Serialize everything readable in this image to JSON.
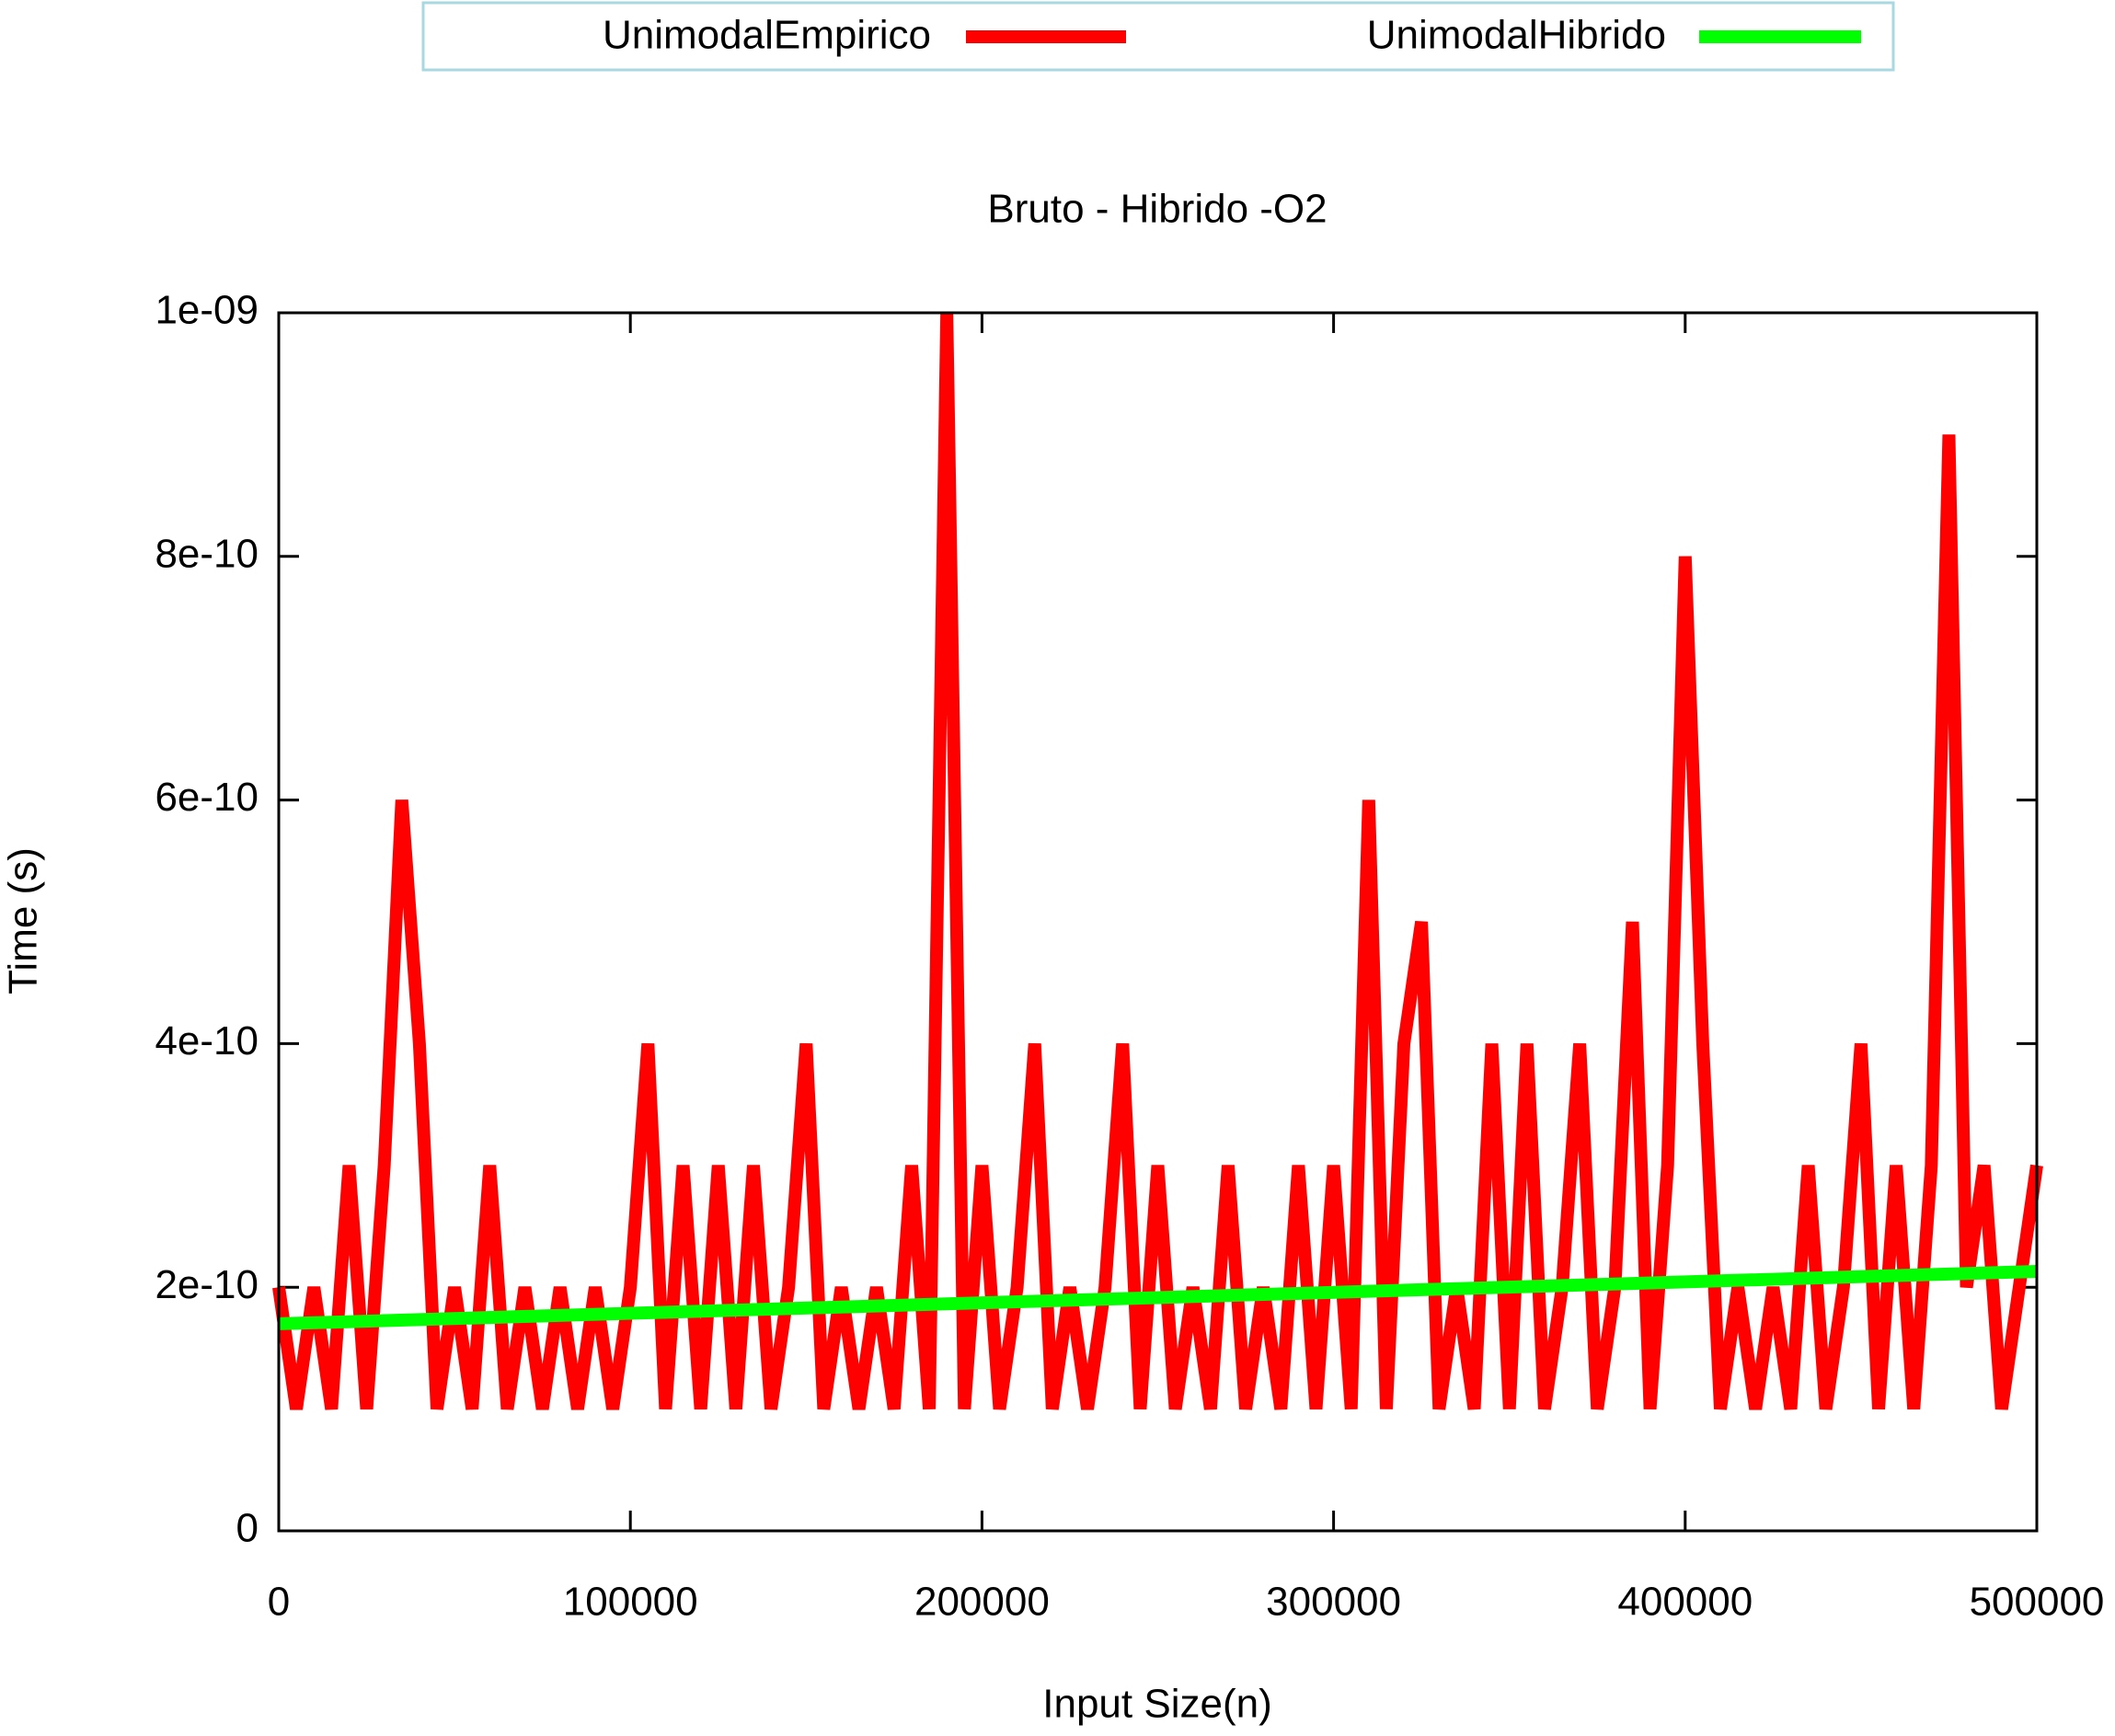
{
  "chart_data": {
    "type": "line",
    "title": "Bruto - Hibrido -O2",
    "xlabel": "Input Size(n)",
    "ylabel": "Time (s)",
    "xlim": [
      0,
      500000
    ],
    "xticks": [
      0,
      100000,
      200000,
      300000,
      400000,
      500000
    ],
    "ylim": [
      0,
      1e-09
    ],
    "yticks": [
      0,
      {
        "value": 2e-10,
        "label": "2e-10"
      },
      {
        "value": 4e-10,
        "label": "4e-10"
      },
      {
        "value": 6e-10,
        "label": "6e-10"
      },
      {
        "value": 8e-10,
        "label": "8e-10"
      },
      {
        "value": 1e-09,
        "label": "1e-09"
      }
    ],
    "series": [
      {
        "name": "UnimodalEmpirico",
        "color": "#ff0000",
        "x": [
          0,
          5000,
          10000,
          15000,
          20000,
          25000,
          30000,
          35000,
          40000,
          45000,
          50000,
          55000,
          60000,
          65000,
          70000,
          75000,
          80000,
          85000,
          90000,
          95000,
          100000,
          105000,
          110000,
          115000,
          120000,
          125000,
          130000,
          135000,
          140000,
          145000,
          150000,
          155000,
          160000,
          165000,
          170000,
          175000,
          180000,
          185000,
          190000,
          195000,
          200000,
          205000,
          210000,
          215000,
          220000,
          225000,
          230000,
          235000,
          240000,
          245000,
          250000,
          255000,
          260000,
          265000,
          270000,
          275000,
          280000,
          285000,
          290000,
          295000,
          300000,
          305000,
          310000,
          315000,
          320000,
          325000,
          330000,
          335000,
          340000,
          345000,
          350000,
          355000,
          360000,
          365000,
          370000,
          375000,
          380000,
          385000,
          390000,
          395000,
          400000,
          405000,
          410000,
          415000,
          420000,
          425000,
          430000,
          435000,
          440000,
          445000,
          450000,
          455000,
          460000,
          465000,
          470000,
          475000,
          480000,
          485000,
          490000,
          495000,
          500000
        ],
        "values": [
          2e-10,
          1e-10,
          2e-10,
          1e-10,
          3e-10,
          1e-10,
          3e-10,
          6e-10,
          4e-10,
          1e-10,
          2e-10,
          1e-10,
          3e-10,
          1e-10,
          2e-10,
          1e-10,
          2e-10,
          1e-10,
          2e-10,
          1e-10,
          2e-10,
          4e-10,
          1e-10,
          3e-10,
          1e-10,
          3e-10,
          1e-10,
          3e-10,
          1e-10,
          2e-10,
          4e-10,
          1e-10,
          2e-10,
          1e-10,
          2e-10,
          1e-10,
          3e-10,
          1e-10,
          1e-09,
          1e-10,
          3e-10,
          1e-10,
          2e-10,
          4e-10,
          1e-10,
          2e-10,
          1e-10,
          2e-10,
          4e-10,
          1e-10,
          3e-10,
          1e-10,
          2e-10,
          1e-10,
          3e-10,
          1e-10,
          2e-10,
          1e-10,
          3e-10,
          1e-10,
          3e-10,
          1e-10,
          6e-10,
          1e-10,
          4e-10,
          5e-10,
          1e-10,
          2e-10,
          1e-10,
          4e-10,
          1e-10,
          4e-10,
          1e-10,
          2e-10,
          4e-10,
          1e-10,
          2e-10,
          5e-10,
          1e-10,
          3e-10,
          8e-10,
          4e-10,
          1e-10,
          2e-10,
          1e-10,
          2e-10,
          1e-10,
          3e-10,
          1e-10,
          2e-10,
          4e-10,
          1e-10,
          3e-10,
          1e-10,
          3e-10,
          9e-10,
          2e-10,
          3e-10,
          1e-10,
          2e-10,
          3e-10
        ]
      },
      {
        "name": "UnimodalHibrido",
        "color": "#00ff00",
        "x": [
          0,
          500000
        ],
        "values": [
          1.7e-10,
          2.13e-10
        ]
      }
    ]
  }
}
